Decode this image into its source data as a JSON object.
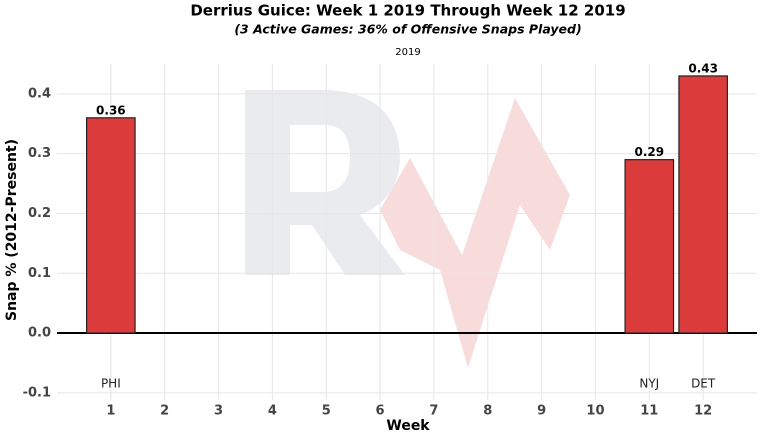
{
  "chart_data": {
    "type": "bar",
    "title": "Derrius Guice: Week 1 2019 Through Week 12 2019",
    "subtitle": "(3 Active Games: 36% of Offensive Snaps Played)",
    "facet_label": "2019",
    "x_label": "Week",
    "y_label": "Snap % (2012-Present)",
    "x": [
      1,
      2,
      3,
      4,
      5,
      6,
      7,
      8,
      9,
      10,
      11,
      12
    ],
    "values": [
      0.36,
      null,
      null,
      null,
      null,
      null,
      null,
      null,
      null,
      null,
      0.29,
      0.43
    ],
    "opponents": [
      "PHI",
      null,
      null,
      null,
      null,
      null,
      null,
      null,
      null,
      null,
      "NYJ",
      "DET"
    ],
    "color": "#dc3c3c",
    "xlim": [
      0,
      13
    ],
    "xticks": [
      1,
      2,
      3,
      4,
      5,
      6,
      7,
      8,
      9,
      10,
      11,
      12
    ],
    "ylim": [
      -0.112,
      0.45
    ],
    "yticks": [
      -0.1,
      {
        "value": 0,
        "label": "0.0"
      },
      0.1,
      0.2,
      0.3,
      0.4
    ],
    "grid": true
  }
}
